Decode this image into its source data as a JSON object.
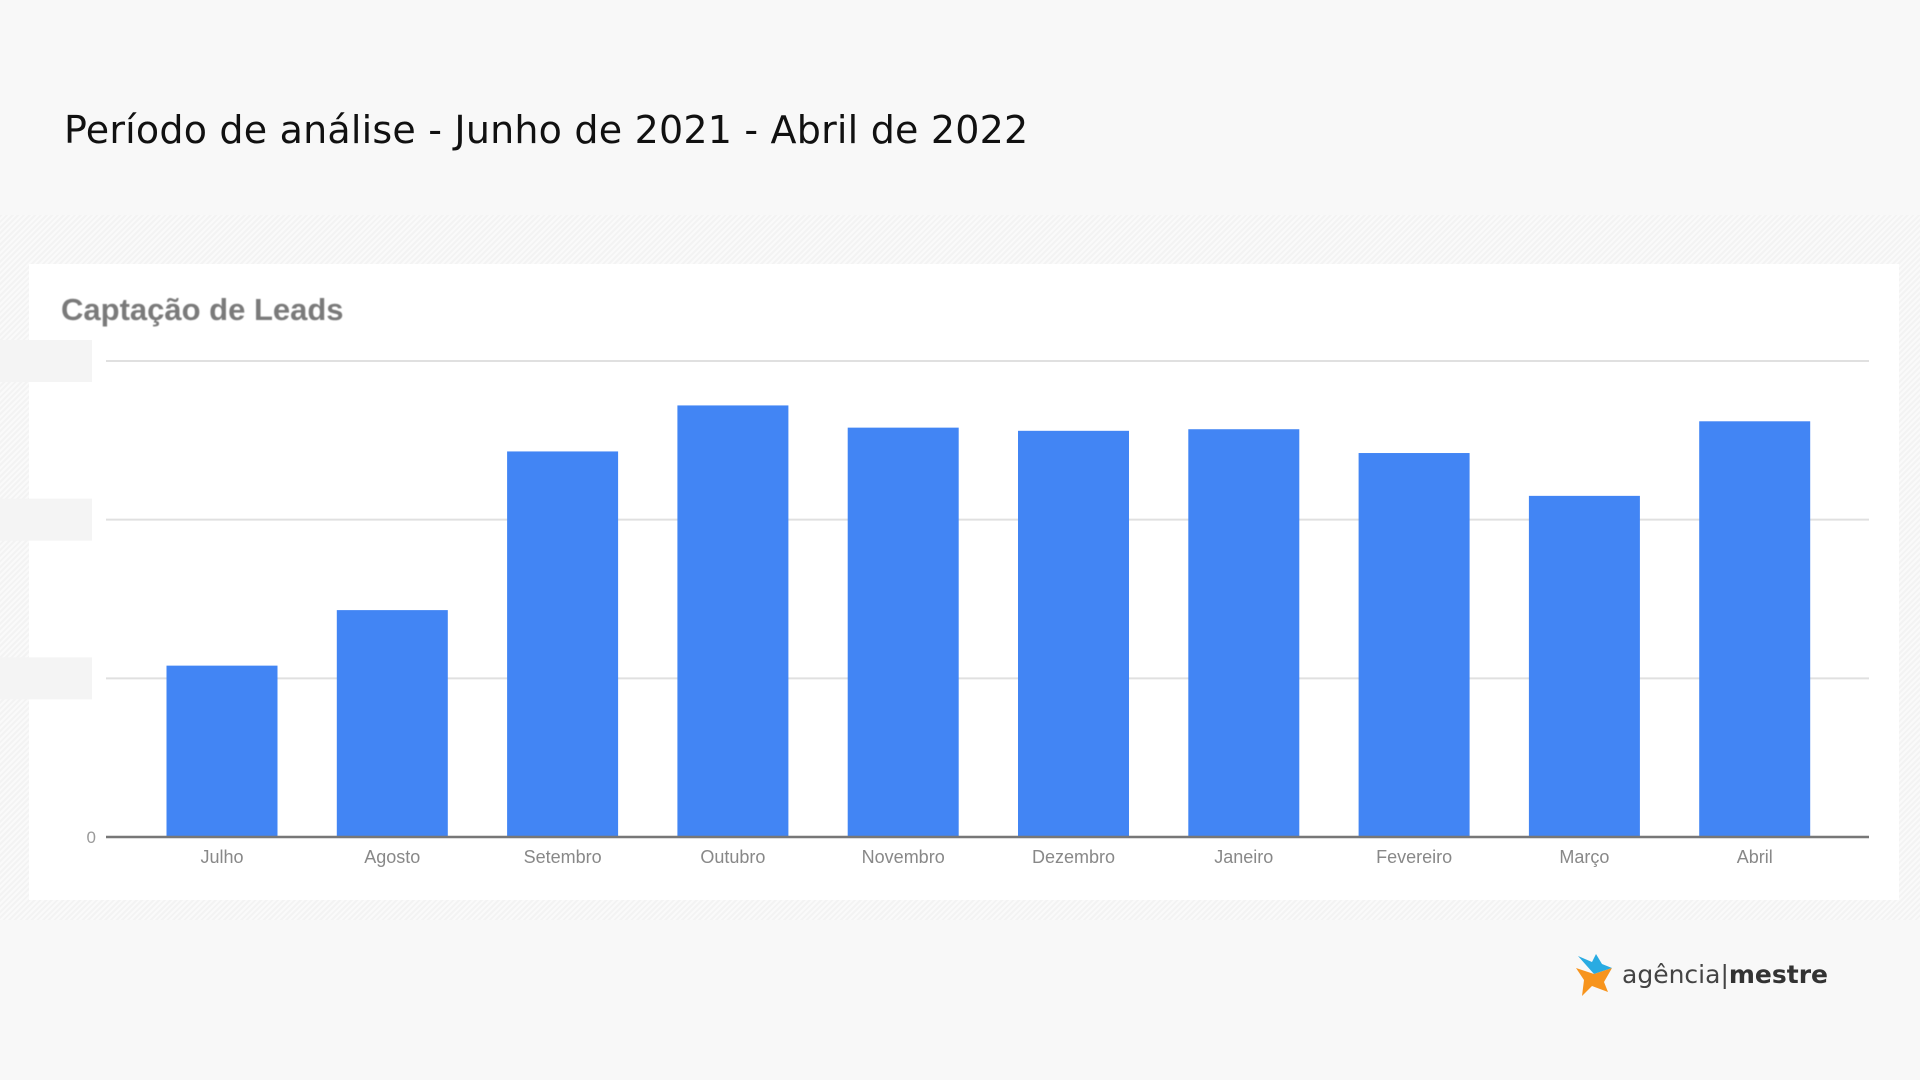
{
  "header": {
    "title": "Período de análise - Junho de 2021 - Abril de 2022"
  },
  "chart_data": {
    "type": "bar",
    "title": "Captação de Leads",
    "categories": [
      "Julho",
      "Agosto",
      "Setembro",
      "Outubro",
      "Novembro",
      "Dezembro",
      "Janeiro",
      "Fevereiro",
      "Março",
      "Abril"
    ],
    "values": [
      1.08,
      1.43,
      2.43,
      2.72,
      2.58,
      2.56,
      2.57,
      2.42,
      2.15,
      2.62
    ],
    "ylim": [
      0,
      3
    ],
    "yticks": [
      0,
      1,
      2,
      3
    ],
    "ytick_labels": [
      "0",
      "",
      "",
      ""
    ],
    "xlabel": "",
    "ylabel": "",
    "grid": true,
    "bar_color": "#4285f4"
  },
  "logo": {
    "word1": "agência",
    "sep": "|",
    "word2": "mestre",
    "colors": {
      "blue": "#29abe2",
      "orange": "#f7941d"
    }
  }
}
